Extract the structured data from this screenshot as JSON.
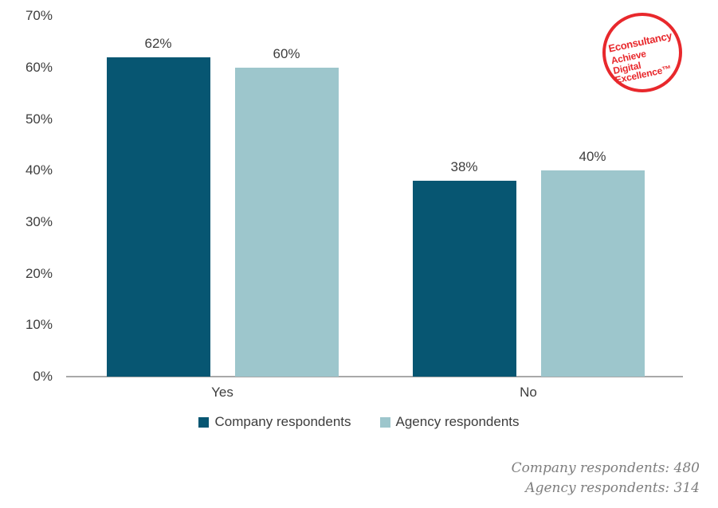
{
  "chart_data": {
    "type": "bar",
    "categories": [
      "Yes",
      "No"
    ],
    "series": [
      {
        "name": "Company respondents",
        "color": "#075672",
        "values": [
          62,
          38
        ]
      },
      {
        "name": "Agency respondents",
        "color": "#9dc6cc",
        "values": [
          60,
          40
        ]
      }
    ],
    "value_label_suffix": "%",
    "title": "",
    "xlabel": "",
    "ylabel": "",
    "ylim": [
      0,
      70
    ],
    "yticks": [
      0,
      10,
      20,
      30,
      40,
      50,
      60,
      70
    ],
    "ytick_labels": [
      "0%",
      "10%",
      "20%",
      "30%",
      "40%",
      "50%",
      "60%",
      "70%"
    ],
    "grid": false,
    "legend_position": "bottom"
  },
  "logo": {
    "brand": "Econsultancy",
    "tagline": [
      "Achieve",
      "Digital",
      "Excellence™"
    ],
    "color": "#e8282c"
  },
  "footnotes": {
    "line1": "Company respondents: 480",
    "line2": "Agency respondents: 314"
  }
}
